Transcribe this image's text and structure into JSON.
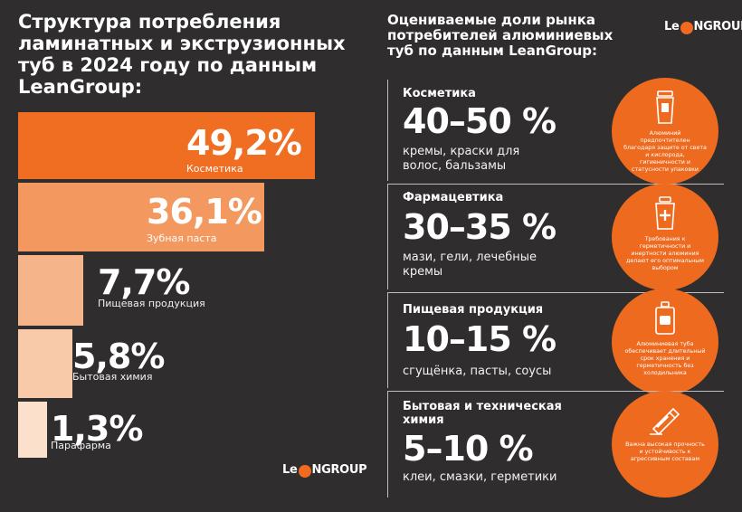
{
  "left": {
    "title_lines": [
      "Структура потребления",
      "ламинатных и экструзионных",
      "туб в 2024 году по данным",
      "LeanGroup:"
    ],
    "logo": {
      "before": "Le",
      "ring": "a",
      "after": "NGROUP"
    }
  },
  "chart_data": {
    "type": "bar",
    "title": "Структура потребления ламинатных и экструзионных туб в 2024 году по данным LeanGroup:",
    "categories": [
      "Косметика",
      "Зубная паста",
      "Пищевая продукция",
      "Бытовая химия",
      "Парафарма"
    ],
    "values": [
      49.2,
      36.1,
      7.7,
      5.8,
      1.3
    ],
    "value_labels": [
      "49,2%",
      "36,1%",
      "7,7%",
      "5,8%",
      "1,3%"
    ],
    "unit": "%",
    "colors": [
      "#ef6e22",
      "#f3985f",
      "#f6b48a",
      "#f8caa9",
      "#fbe0cc"
    ]
  },
  "right": {
    "title_lines": [
      "Оцениваемые доли рынка",
      "потребителей алюминиевых",
      "туб по данным LeanGroup:"
    ],
    "logo": {
      "before": "Le",
      "ring": "a",
      "after": "NGROUP"
    },
    "segments": [
      {
        "category": "Косметика",
        "range": "40–50 %",
        "description": "кремы, краски для волос, бальзамы",
        "note": "Алюминий предпочтителен благодаря защите от света и кислорода, гигиеничности и статусности упаковки",
        "icon": "cosmetic-tube-icon"
      },
      {
        "category": "Фармацевтика",
        "range": "30–35 %",
        "description": "мази, гели, лечебные кремы",
        "note": "Требования к герметичности и инертности алюминия делают его оптимальным выбором",
        "icon": "medical-tube-icon"
      },
      {
        "category": "Пищевая продукция",
        "range": "10–15 %",
        "description": "сгущёнка, пасты, соусы",
        "note": "Алюминиевая туба обеспечивает длительный срок хранения и герметичность без холодильника",
        "icon": "food-tube-icon"
      },
      {
        "category": "Бытовая и техническая химия",
        "range": "5–10 %",
        "description": "клеи, смазки, герметики",
        "note": "Важна высокая прочность и устойчивость к агрессивным составам",
        "icon": "glue-tube-icon"
      }
    ]
  }
}
